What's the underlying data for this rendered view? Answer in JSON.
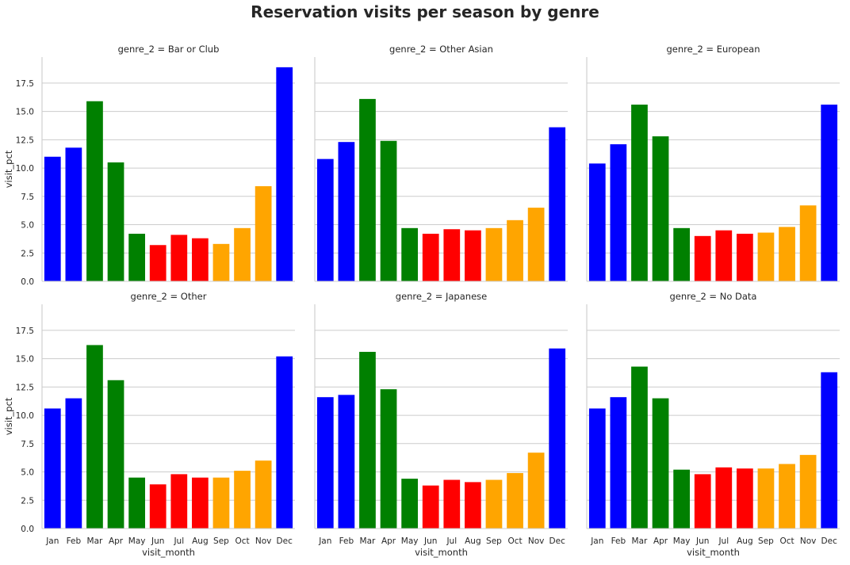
{
  "title": "Reservation visits per season by genre",
  "season_colors": {
    "winter": "#0000ff",
    "spring": "#008000",
    "summer": "#ff0000",
    "autumn": "#ffa500"
  },
  "chart_data": {
    "type": "bar",
    "facet_grid": {
      "rows": 2,
      "cols": 3,
      "sharey": true
    },
    "categories": [
      "Jan",
      "Feb",
      "Mar",
      "Apr",
      "May",
      "Jun",
      "Jul",
      "Aug",
      "Sep",
      "Oct",
      "Nov",
      "Dec"
    ],
    "category_seasons": [
      "winter",
      "winter",
      "spring",
      "spring",
      "spring",
      "summer",
      "summer",
      "summer",
      "autumn",
      "autumn",
      "autumn",
      "winter"
    ],
    "xlabel": "visit_month",
    "ylabel": "visit_pct",
    "ylim": [
      0,
      19.8
    ],
    "yticks": [
      "0.0",
      "2.5",
      "5.0",
      "7.5",
      "10.0",
      "12.5",
      "15.0",
      "17.5"
    ],
    "grid": "horizontal",
    "panels": [
      {
        "title": "genre_2 = Bar or Club",
        "values": [
          11.0,
          11.8,
          15.9,
          10.5,
          4.2,
          3.2,
          4.1,
          3.8,
          3.3,
          4.7,
          8.4,
          18.9
        ]
      },
      {
        "title": "genre_2 = Other Asian",
        "values": [
          10.8,
          12.3,
          16.1,
          12.4,
          4.7,
          4.2,
          4.6,
          4.5,
          4.7,
          5.4,
          6.5,
          13.6
        ]
      },
      {
        "title": "genre_2 = European",
        "values": [
          10.4,
          12.1,
          15.6,
          12.8,
          4.7,
          4.0,
          4.5,
          4.2,
          4.3,
          4.8,
          6.7,
          15.6
        ]
      },
      {
        "title": "genre_2 = Other",
        "values": [
          10.6,
          11.5,
          16.2,
          13.1,
          4.5,
          3.9,
          4.8,
          4.5,
          4.5,
          5.1,
          6.0,
          15.2
        ]
      },
      {
        "title": "genre_2 = Japanese",
        "values": [
          11.6,
          11.8,
          15.6,
          12.3,
          4.4,
          3.8,
          4.3,
          4.1,
          4.3,
          4.9,
          6.7,
          15.9
        ]
      },
      {
        "title": "genre_2 = No Data",
        "values": [
          10.6,
          11.6,
          14.3,
          11.5,
          5.2,
          4.8,
          5.4,
          5.3,
          5.3,
          5.7,
          6.5,
          13.8
        ]
      }
    ]
  }
}
